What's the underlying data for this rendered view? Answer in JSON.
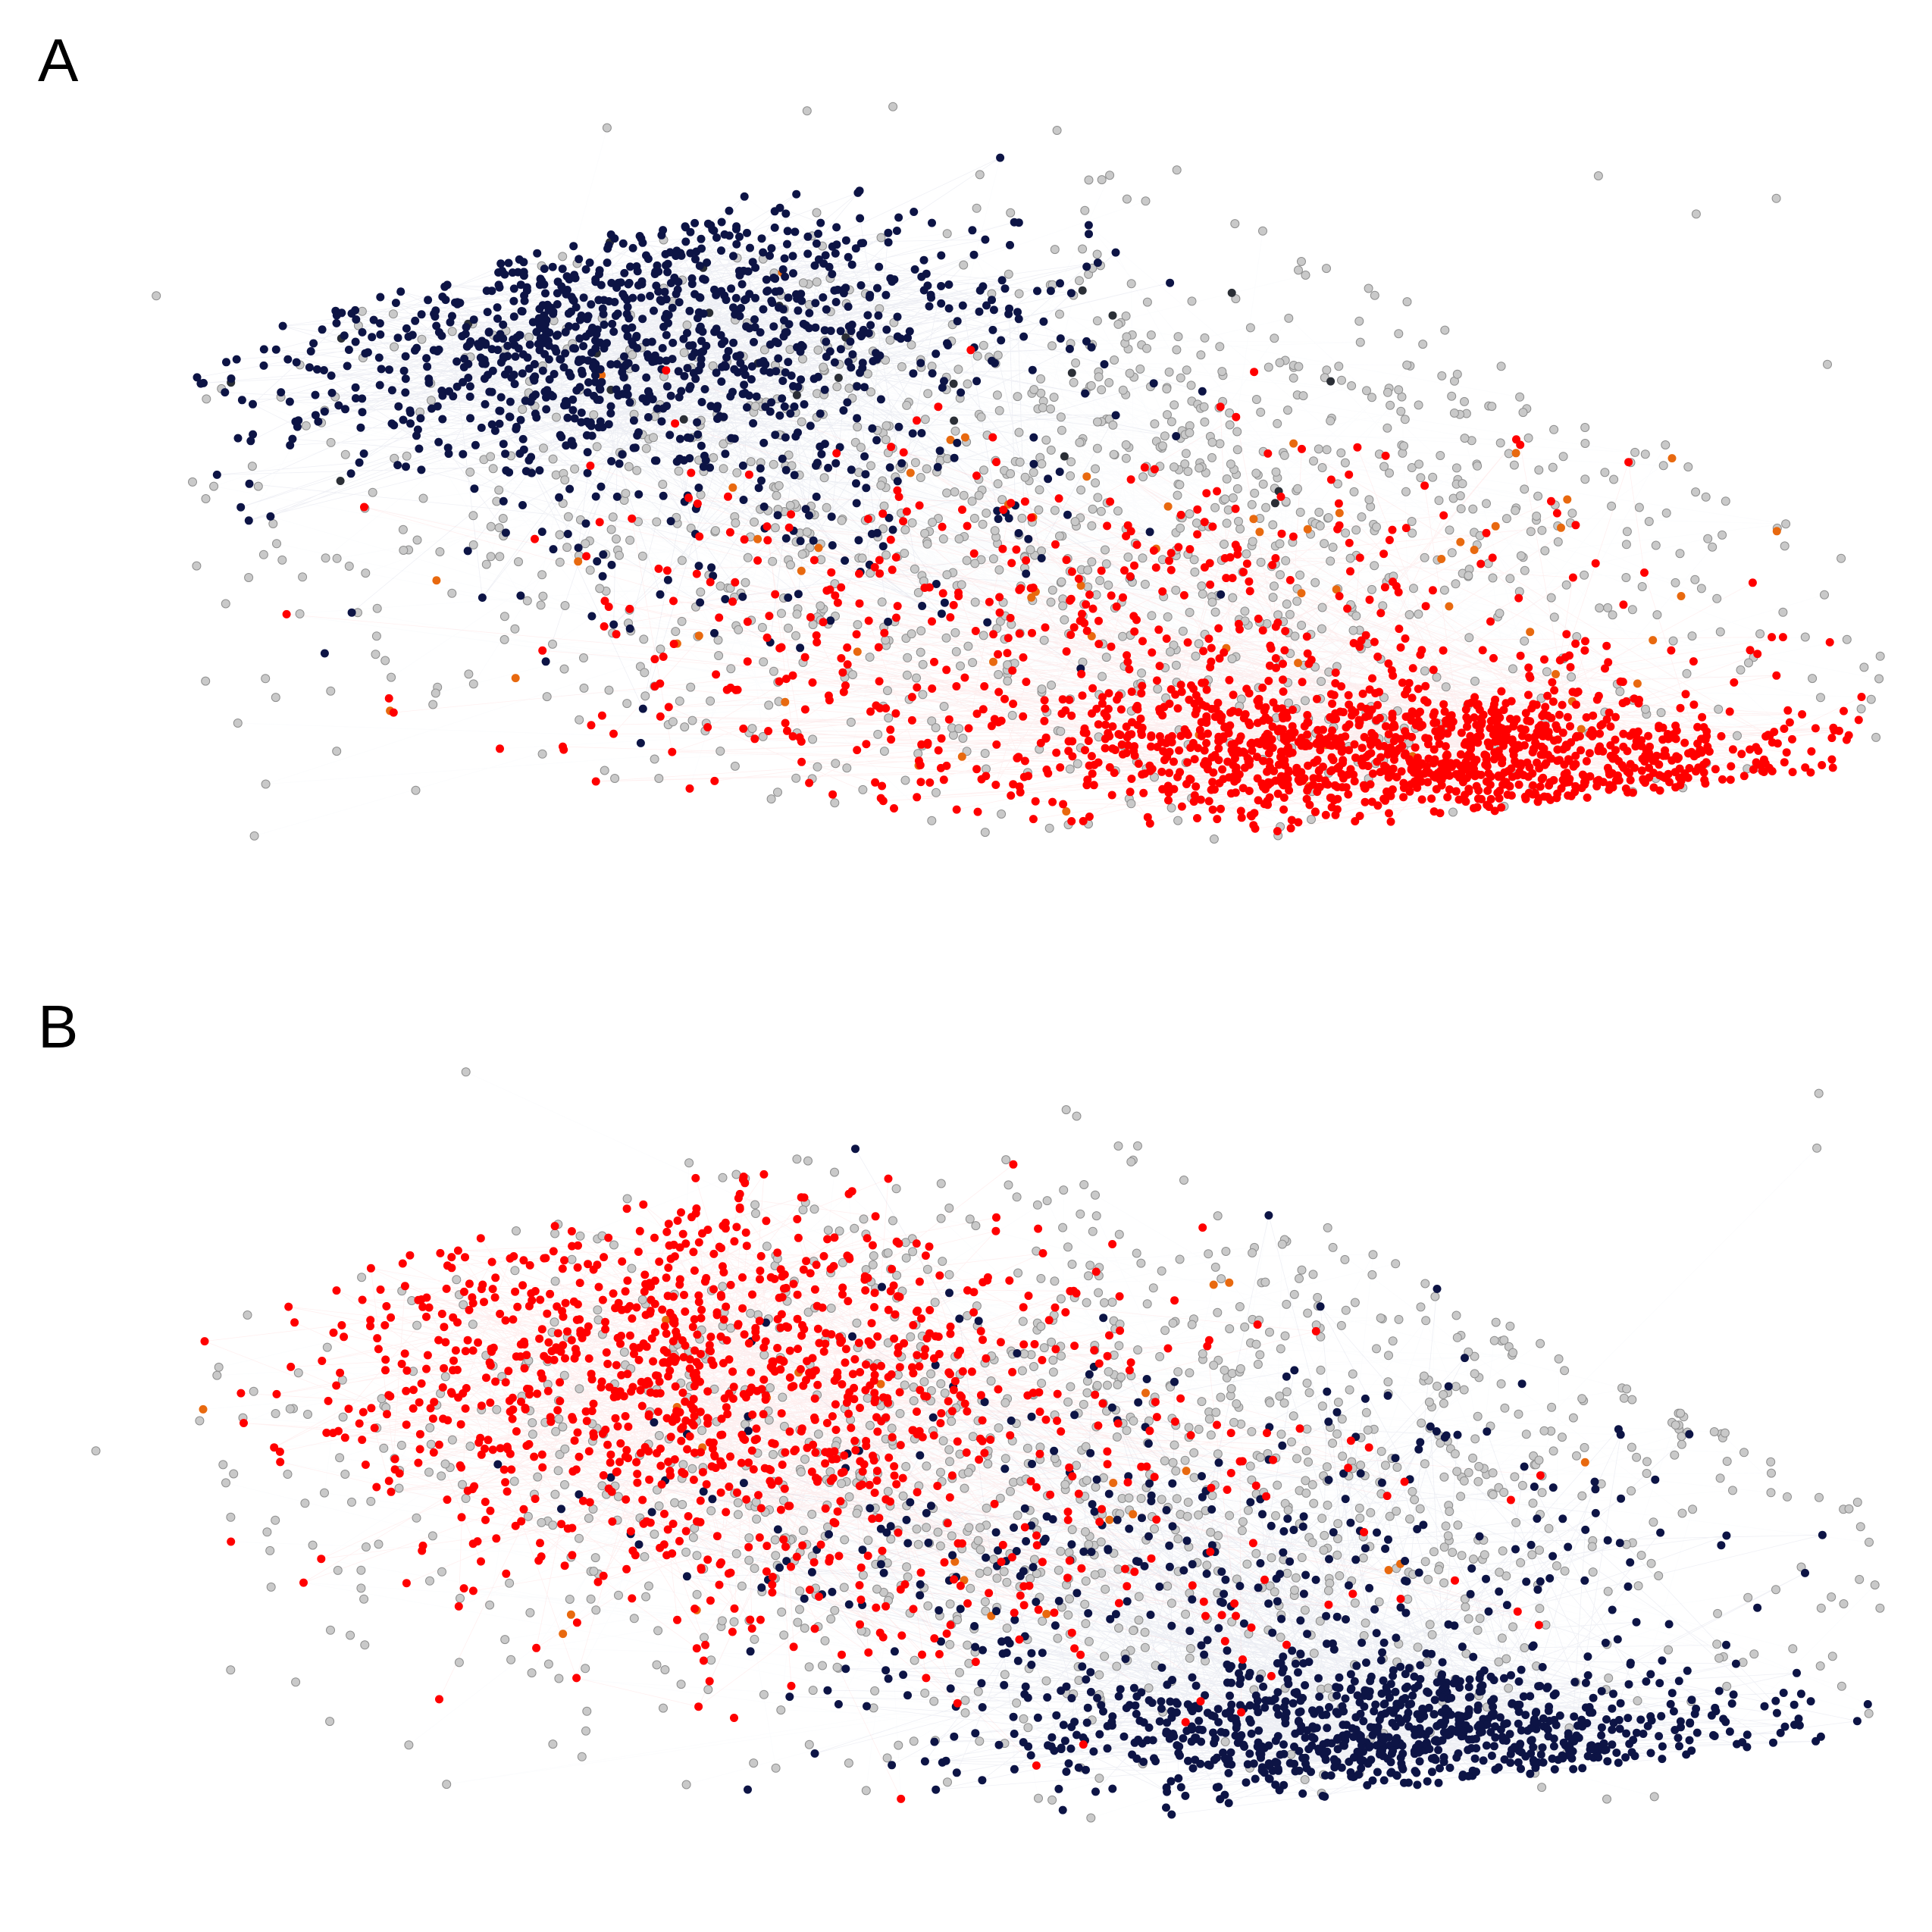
{
  "figure": {
    "panels": [
      {
        "id": "A",
        "label": "A",
        "clusters": [
          {
            "group": "blue",
            "count": 950,
            "center": [
              0.22,
              0.28
            ],
            "spread": [
              0.13,
              0.1
            ],
            "tilt": -0.25
          },
          {
            "group": "blue",
            "count": 160,
            "center": [
              0.33,
              0.52
            ],
            "spread": [
              0.14,
              0.12
            ],
            "tilt": -0.2
          },
          {
            "group": "red",
            "count": 1100,
            "center": [
              0.76,
              0.88
            ],
            "spread": [
              0.13,
              0.05
            ],
            "tilt": 0.05
          },
          {
            "group": "red",
            "count": 520,
            "center": [
              0.55,
              0.72
            ],
            "spread": [
              0.18,
              0.14
            ],
            "tilt": 0.1
          },
          {
            "group": "orange",
            "count": 60,
            "center": [
              0.55,
              0.65
            ],
            "spread": [
              0.25,
              0.18
            ],
            "tilt": 0
          },
          {
            "group": "dark",
            "count": 25,
            "center": [
              0.35,
              0.35
            ],
            "spread": [
              0.2,
              0.14
            ],
            "tilt": 0
          },
          {
            "group": "gray",
            "count": 1300,
            "center": [
              0.52,
              0.55
            ],
            "spread": [
              0.28,
              0.22
            ],
            "tilt": 0
          }
        ],
        "edge_samples": 700
      },
      {
        "id": "B",
        "label": "B",
        "clusters": [
          {
            "group": "red",
            "count": 900,
            "center": [
              0.27,
              0.38
            ],
            "spread": [
              0.12,
              0.12
            ],
            "tilt": -0.2
          },
          {
            "group": "red",
            "count": 280,
            "center": [
              0.42,
              0.58
            ],
            "spread": [
              0.16,
              0.16
            ],
            "tilt": 0
          },
          {
            "group": "blue",
            "count": 800,
            "center": [
              0.74,
              0.9
            ],
            "spread": [
              0.13,
              0.05
            ],
            "tilt": 0.05
          },
          {
            "group": "blue",
            "count": 420,
            "center": [
              0.62,
              0.68
            ],
            "spread": [
              0.18,
              0.16
            ],
            "tilt": 0.1
          },
          {
            "group": "orange",
            "count": 25,
            "center": [
              0.5,
              0.55
            ],
            "spread": [
              0.22,
              0.16
            ],
            "tilt": 0
          },
          {
            "group": "gray",
            "count": 1300,
            "center": [
              0.55,
              0.52
            ],
            "spread": [
              0.28,
              0.22
            ],
            "tilt": 0
          }
        ],
        "edge_samples": 700
      }
    ],
    "colors": {
      "blue": "#0d1445",
      "red": "#ff0000",
      "orange": "#e8690f",
      "dark": "#2b2f36",
      "gray": "#c9c9c9",
      "gray_stroke": "#8f8f8f",
      "blue_edge": "#1a2a6c",
      "red_edge": "#ff2a2a",
      "background": "#ffffff"
    }
  }
}
